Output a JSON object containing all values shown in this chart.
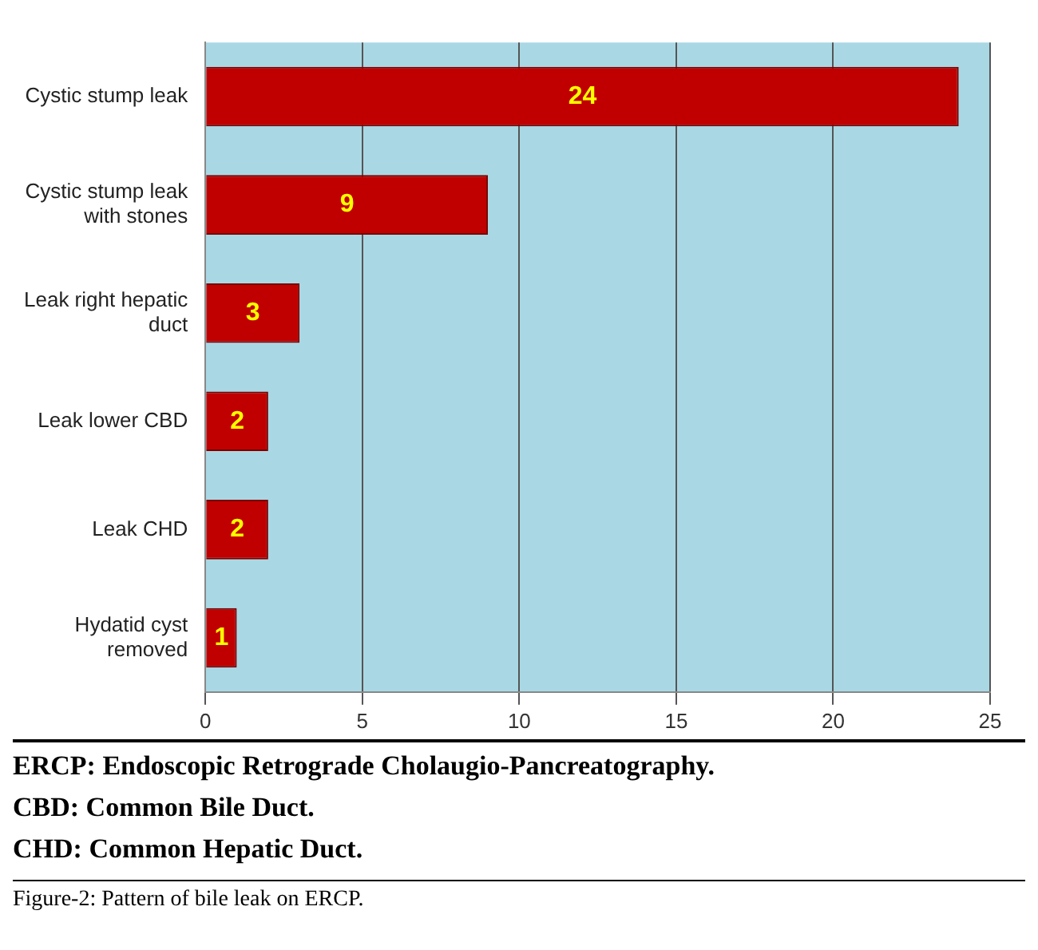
{
  "chart_data": {
    "type": "bar",
    "orientation": "horizontal",
    "categories": [
      "Cystic stump leak",
      "Cystic stump leak with stones",
      "Leak right hepatic duct",
      "Leak lower CBD",
      "Leak CHD",
      "Hydatid cyst removed"
    ],
    "values": [
      24,
      9,
      3,
      2,
      2,
      1
    ],
    "color": "#c00000",
    "xlim": [
      0,
      25
    ],
    "xticks": [
      0,
      5,
      10,
      15,
      20,
      25
    ],
    "grid": "x",
    "data_labels": true,
    "annotations": [
      "ERCP: Endoscopic Retrograde Cholaugio-Pancreatography.",
      "CBD: Common Bile Duct.",
      "CHD: Common Hepatic Duct.",
      "Figure-2: Pattern of bile leak on ERCP."
    ]
  }
}
